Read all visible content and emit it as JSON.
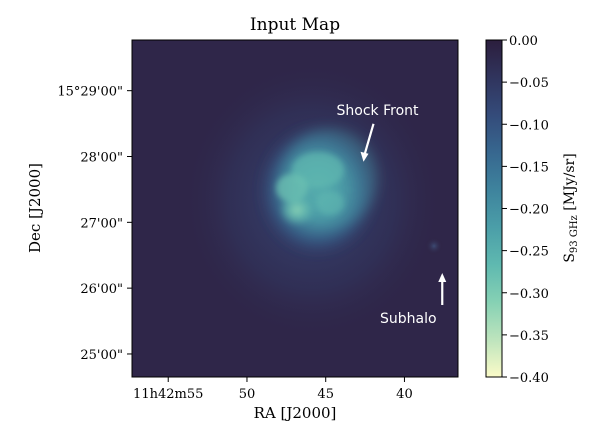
{
  "chart_data": {
    "type": "heatmap",
    "title": "Input Map",
    "xlabel": "RA [J2000]",
    "ylabel": "Dec [J2000]",
    "x_ticks": [
      {
        "label": "11h42m55",
        "ra_seconds": 55
      },
      {
        "label": "50",
        "ra_seconds": 50
      },
      {
        "label": "45",
        "ra_seconds": 45
      },
      {
        "label": "40",
        "ra_seconds": 40
      }
    ],
    "y_ticks": [
      {
        "label": "15°29'00\"",
        "dec_arcmin": 29
      },
      {
        "label": "28'00\"",
        "dec_arcmin": 28
      },
      {
        "label": "27'00\"",
        "dec_arcmin": 27
      },
      {
        "label": "26'00\"",
        "dec_arcmin": 26
      },
      {
        "label": "25'00\"",
        "dec_arcmin": 25
      }
    ],
    "xlim": [
      57.3,
      36.6
    ],
    "ylim": [
      24.65,
      29.77
    ],
    "colorbar": {
      "label_main": "S",
      "label_sub_prefix": "93 GHz",
      "label_suffix": " [MJy/sr]",
      "vmin": -0.4,
      "vmax": 0.0,
      "ticks": [
        "0.00",
        "−0.05",
        "−0.10",
        "−0.15",
        "−0.20",
        "−0.25",
        "−0.30",
        "−0.35",
        "−0.40"
      ],
      "tick_values": [
        0.0,
        -0.05,
        -0.1,
        -0.15,
        -0.2,
        -0.25,
        -0.3,
        -0.35,
        -0.4
      ],
      "colors": [
        "#2c1e3d",
        "#30345d",
        "#344b7a",
        "#37678f",
        "#3e839d",
        "#4b9ea8",
        "#5fb9b0",
        "#86d1b4",
        "#bde4bd",
        "#fbfbc8"
      ]
    },
    "annotations": [
      {
        "text": "Shock Front",
        "target_ra": 42.6,
        "target_dec": 27.92
      },
      {
        "text": "Subhalo",
        "target_ra": 37.6,
        "target_dec": 26.23
      }
    ],
    "features": [
      {
        "name": "cluster-core",
        "ra": 44.9,
        "dec": 27.22,
        "peak_value": -0.28
      },
      {
        "name": "subhalo",
        "ra": 37.6,
        "dec": 26.7,
        "peak_value": -0.04
      }
    ]
  }
}
